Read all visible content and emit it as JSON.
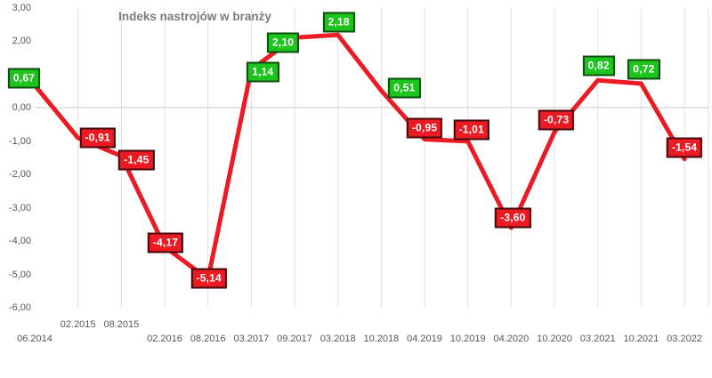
{
  "chart_data": {
    "type": "line",
    "title": "Indeks nastrojów w branży",
    "categories": [
      "06.2014",
      "02.2015",
      "08.2015",
      "02.2016",
      "08.2016",
      "03.2017",
      "09.2017",
      "03.2018",
      "10.2018",
      "04.2019",
      "10.2019",
      "04.2020",
      "10.2020",
      "03.2021",
      "10.2021",
      "03.2022"
    ],
    "values": [
      0.67,
      -0.91,
      -1.45,
      -4.17,
      -5.14,
      1.14,
      2.1,
      2.18,
      0.51,
      -0.95,
      -1.01,
      -3.6,
      -0.73,
      0.82,
      0.72,
      -1.54
    ],
    "point_labels": [
      "0,67",
      "-0,91",
      "-1,45",
      "-4,17",
      "-5,14",
      "1,14",
      "2,10",
      "2,18",
      "0,51",
      "-0,95",
      "-1,01",
      "-3,60",
      "-0,73",
      "0,82",
      "0,72",
      "-1,54"
    ],
    "label_colors": [
      "green",
      "red",
      "red",
      "red",
      "red",
      "green",
      "green",
      "green",
      "green",
      "red",
      "red",
      "red",
      "red",
      "green",
      "green",
      "red"
    ],
    "y_ticks": [
      "3,00",
      "2,00",
      "1,00",
      "0,00",
      "-1,00",
      "-2,00",
      "-3,00",
      "-4,00",
      "-5,00",
      "-6,00"
    ],
    "y_tick_values": [
      3,
      2,
      1,
      0,
      -1,
      -2,
      -3,
      -4,
      -5,
      -6
    ],
    "ylim": [
      -6,
      3
    ],
    "xlabel": "",
    "ylabel": "",
    "legend": "none",
    "grid": "vertical category gridlines; horizontal line only at zero",
    "staggered_ticks": [
      "02.2015",
      "08.2015"
    ],
    "colors": {
      "line": "#ec1b23",
      "positive_label_fill": "#1ec41e",
      "positive_label_border": "#0d4f0d",
      "negative_label_fill": "#ec1b23",
      "negative_label_border": "#440a0c",
      "label_text": "#ffffff",
      "axis_text": "#595959",
      "title_text": "#7c7c7c",
      "gridline": "#e0e0e0",
      "zero_line": "#c8c8c8"
    }
  }
}
